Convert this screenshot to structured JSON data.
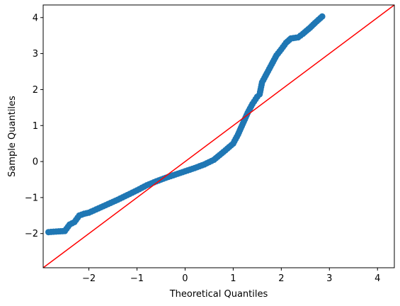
{
  "chart_data": {
    "type": "scatter",
    "title": "",
    "xlabel": "Theoretical Quantiles",
    "ylabel": "Sample Quantiles",
    "xlim": [
      -2.95,
      4.35
    ],
    "ylim": [
      -2.95,
      4.35
    ],
    "xticks": [
      -2,
      -1,
      0,
      1,
      2,
      3,
      4
    ],
    "yticks": [
      -2,
      -1,
      0,
      1,
      2,
      3,
      4
    ],
    "xtick_labels": [
      "−2",
      "−1",
      "0",
      "1",
      "2",
      "3",
      "4"
    ],
    "ytick_labels": [
      "−2",
      "−1",
      "0",
      "1",
      "2",
      "3",
      "4"
    ],
    "grid": false,
    "colors": {
      "points": "#1f77b4",
      "reference_line": "#ff0000"
    },
    "reference_line": {
      "from": [
        -2.95,
        -2.95
      ],
      "to": [
        4.35,
        4.35
      ]
    },
    "anchors": [
      [
        -2.84,
        -1.96
      ],
      [
        -2.63,
        -1.94
      ],
      [
        -2.5,
        -1.93
      ],
      [
        -2.4,
        -1.75
      ],
      [
        -2.3,
        -1.68
      ],
      [
        -2.2,
        -1.5
      ],
      [
        -2.1,
        -1.45
      ],
      [
        -2.0,
        -1.42
      ],
      [
        -1.8,
        -1.3
      ],
      [
        -1.6,
        -1.18
      ],
      [
        -1.4,
        -1.06
      ],
      [
        -1.2,
        -0.93
      ],
      [
        -1.0,
        -0.8
      ],
      [
        -0.8,
        -0.66
      ],
      [
        -0.6,
        -0.55
      ],
      [
        -0.4,
        -0.45
      ],
      [
        -0.2,
        -0.36
      ],
      [
        0.0,
        -0.27
      ],
      [
        0.2,
        -0.18
      ],
      [
        0.4,
        -0.08
      ],
      [
        0.6,
        0.05
      ],
      [
        0.8,
        0.27
      ],
      [
        1.0,
        0.5
      ],
      [
        1.1,
        0.75
      ],
      [
        1.2,
        1.05
      ],
      [
        1.3,
        1.35
      ],
      [
        1.4,
        1.6
      ],
      [
        1.5,
        1.8
      ],
      [
        1.55,
        1.87
      ],
      [
        1.6,
        2.2
      ],
      [
        1.7,
        2.45
      ],
      [
        1.8,
        2.7
      ],
      [
        1.9,
        2.95
      ],
      [
        2.0,
        3.12
      ],
      [
        2.1,
        3.3
      ],
      [
        2.2,
        3.42
      ],
      [
        2.35,
        3.45
      ],
      [
        2.45,
        3.55
      ],
      [
        2.6,
        3.72
      ],
      [
        2.7,
        3.85
      ],
      [
        2.85,
        4.03
      ]
    ]
  }
}
